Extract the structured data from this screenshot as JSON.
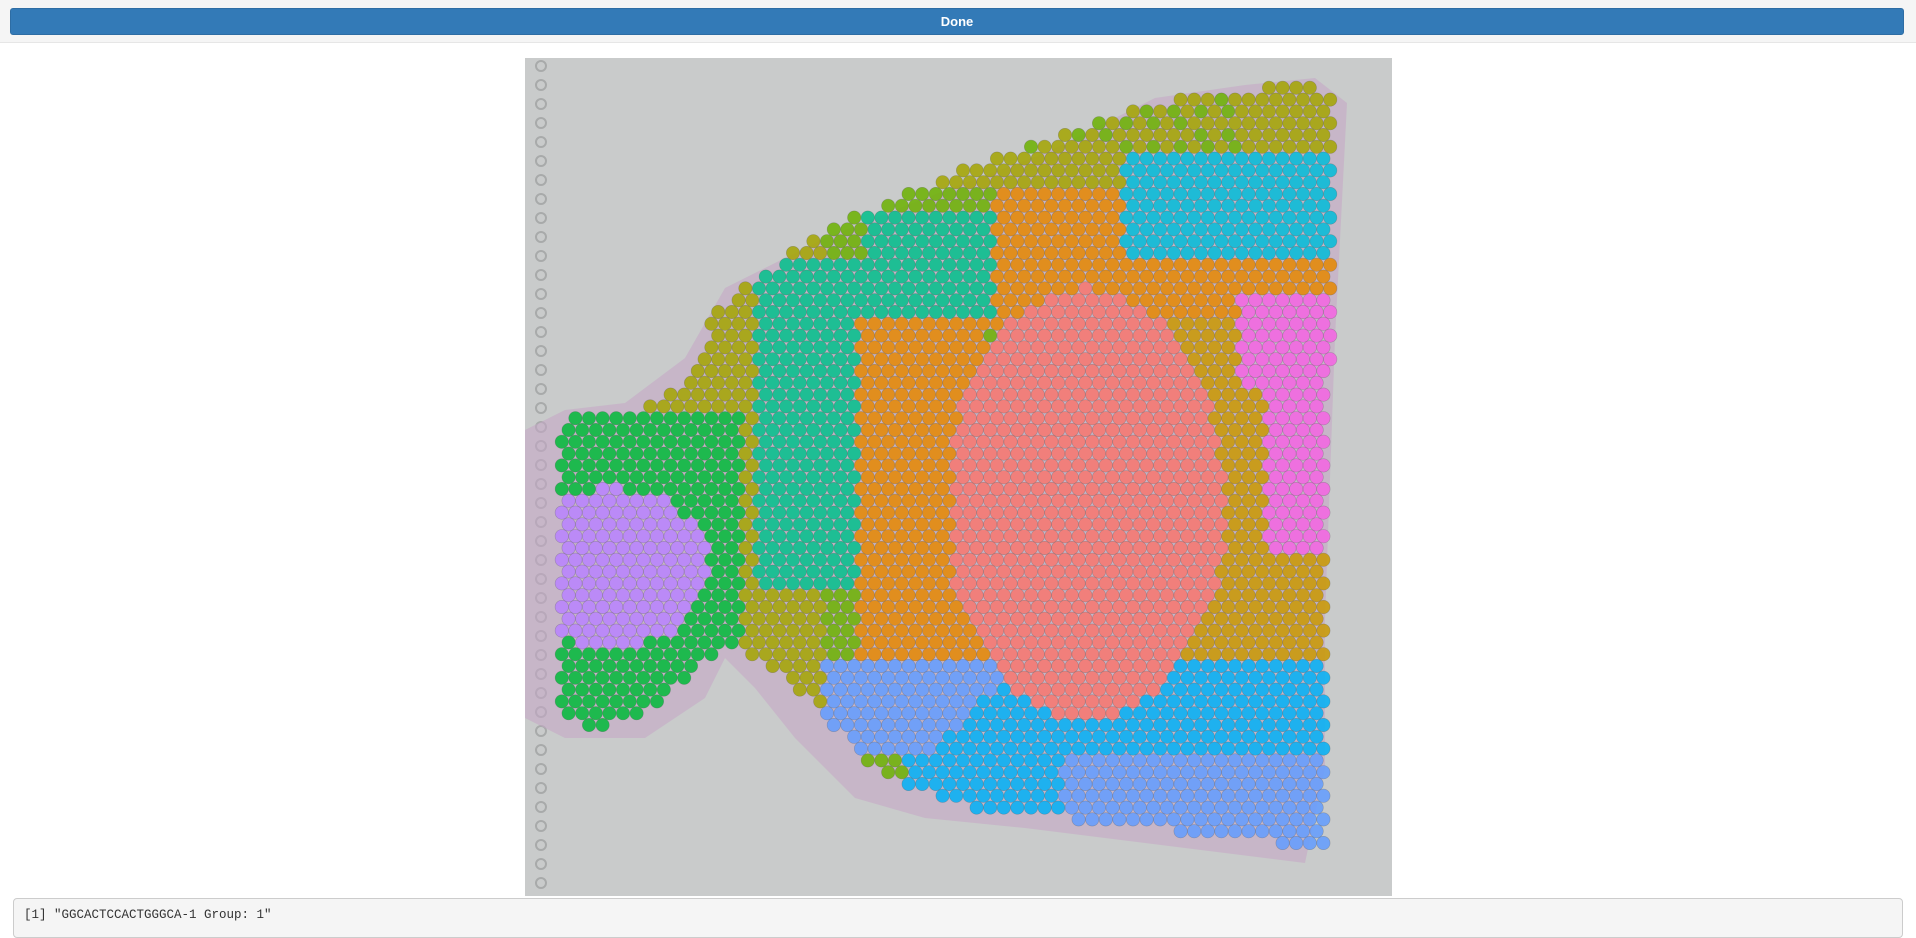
{
  "toolbar": {
    "done_label": "Done"
  },
  "plot": {
    "alt": "Spatial spot clusters over tissue image",
    "cluster_colors": {
      "0": "#f8766d",
      "1": "#e58700",
      "2": "#c99800",
      "3": "#a3a500",
      "4": "#6bb100",
      "5": "#00ba38",
      "6": "#00c08b",
      "7": "#00bcd8",
      "8": "#00b0f6",
      "9": "#619cff",
      "10": "#b983ff",
      "11": "#f564e3"
    },
    "background_color": "#c9cbcb",
    "tissue_color": "#c4a6c6"
  },
  "console": {
    "output": "[1] \"GGCACTCCACTGGGCA-1 Group: 1\""
  }
}
